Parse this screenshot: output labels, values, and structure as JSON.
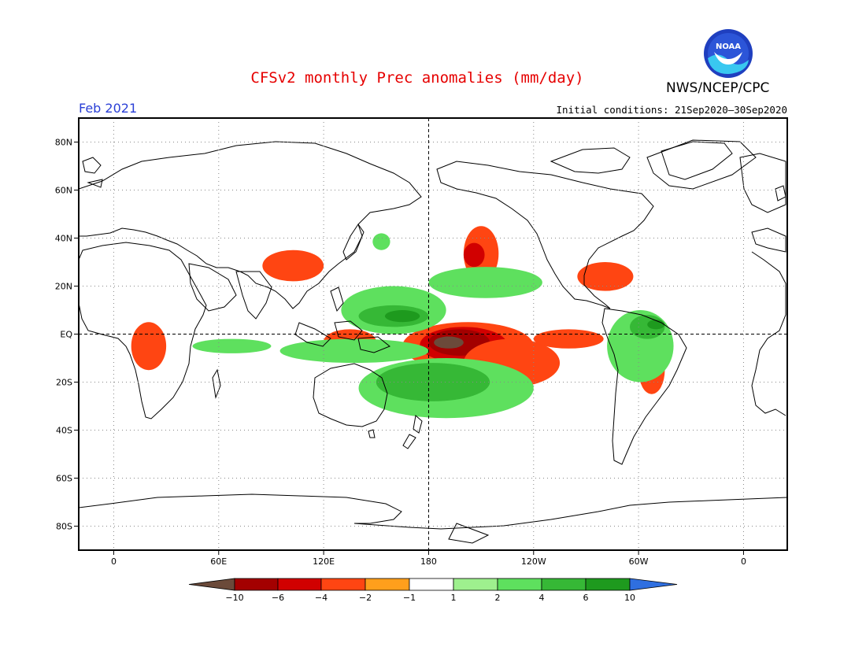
{
  "header": {
    "title": "CFSv2 monthly Prec anomalies (mm/day)",
    "agency": "NWS/NCEP/CPC",
    "logo_text": "NOAA",
    "month": "Feb 2021",
    "initial_conditions": "Initial conditions: 21Sep2020–30Sep2020"
  },
  "axes": {
    "lat_labels": [
      "80N",
      "60N",
      "40N",
      "20N",
      "EQ",
      "20S",
      "40S",
      "60S",
      "80S"
    ],
    "lat_values": [
      80,
      60,
      40,
      20,
      0,
      -20,
      -40,
      -60,
      -80
    ],
    "lon_labels": [
      "0",
      "60E",
      "120E",
      "180",
      "120W",
      "60W",
      "0"
    ],
    "lon_values": [
      0,
      60,
      120,
      180,
      240,
      300,
      360
    ],
    "lon_range": [
      -20,
      385
    ],
    "lat_range": [
      -90,
      90
    ],
    "grid": true
  },
  "colorbar": {
    "labels": [
      "−10",
      "−6",
      "−4",
      "−2",
      "−1",
      "1",
      "2",
      "4",
      "6",
      "10"
    ],
    "colors": [
      "#6b4a3a",
      "#a30000",
      "#d10000",
      "#ff4512",
      "#ff9f1c",
      "#ffffff",
      "#9ef08e",
      "#5ee05e",
      "#36b836",
      "#1e9a1e",
      "#2f6fe0"
    ]
  },
  "chart_data": {
    "type": "heatmap",
    "title": "CFSv2 monthly Prec anomalies (mm/day)",
    "variable": "precipitation anomaly",
    "units": "mm/day",
    "valid": "Feb 2021",
    "levels": [
      -10,
      -6,
      -4,
      -2,
      -1,
      1,
      2,
      4,
      6,
      10
    ],
    "regions": [
      {
        "lon": [
          165,
          240
        ],
        "lat": [
          -15,
          5
        ],
        "value": -2
      },
      {
        "lon": [
          175,
          225
        ],
        "lat": [
          -12,
          3
        ],
        "value": -4
      },
      {
        "lon": [
          180,
          215
        ],
        "lat": [
          -9,
          2
        ],
        "value": -6
      },
      {
        "lon": [
          183,
          200
        ],
        "lat": [
          -6,
          -1
        ],
        "value": -10
      },
      {
        "lon": [
          200,
          255
        ],
        "lat": [
          -22,
          -2
        ],
        "value": -2
      },
      {
        "lon": [
          240,
          280
        ],
        "lat": [
          -6,
          2
        ],
        "value": -2
      },
      {
        "lon": [
          200,
          220
        ],
        "lat": [
          22,
          45
        ],
        "value": -2
      },
      {
        "lon": [
          200,
          212
        ],
        "lat": [
          28,
          38
        ],
        "value": -4
      },
      {
        "lon": [
          265,
          297
        ],
        "lat": [
          18,
          30
        ],
        "value": -2
      },
      {
        "lon": [
          85,
          120
        ],
        "lat": [
          22,
          35
        ],
        "value": -2
      },
      {
        "lon": [
          120,
          150
        ],
        "lat": [
          -8,
          2
        ],
        "value": -2
      },
      {
        "lon": [
          300,
          315
        ],
        "lat": [
          -25,
          -5
        ],
        "value": -2
      },
      {
        "lon": [
          10,
          30
        ],
        "lat": [
          -15,
          5
        ],
        "value": -2
      },
      {
        "lon": [
          95,
          180
        ],
        "lat": [
          -12,
          -2
        ],
        "value": 2
      },
      {
        "lon": [
          130,
          190
        ],
        "lat": [
          0,
          20
        ],
        "value": 2
      },
      {
        "lon": [
          140,
          180
        ],
        "lat": [
          3,
          12
        ],
        "value": 4
      },
      {
        "lon": [
          155,
          175
        ],
        "lat": [
          5,
          10
        ],
        "value": 6
      },
      {
        "lon": [
          140,
          240
        ],
        "lat": [
          -35,
          -10
        ],
        "value": 2
      },
      {
        "lon": [
          150,
          215
        ],
        "lat": [
          -28,
          -12
        ],
        "value": 4
      },
      {
        "lon": [
          180,
          245
        ],
        "lat": [
          15,
          28
        ],
        "value": 2
      },
      {
        "lon": [
          282,
          320
        ],
        "lat": [
          -20,
          10
        ],
        "value": 2
      },
      {
        "lon": [
          295,
          315
        ],
        "lat": [
          -2,
          8
        ],
        "value": 4
      },
      {
        "lon": [
          305,
          315
        ],
        "lat": [
          2,
          6
        ],
        "value": 6
      },
      {
        "lon": [
          45,
          90
        ],
        "lat": [
          -8,
          -2
        ],
        "value": 2
      },
      {
        "lon": [
          148,
          158
        ],
        "lat": [
          35,
          42
        ],
        "value": 2
      }
    ]
  }
}
